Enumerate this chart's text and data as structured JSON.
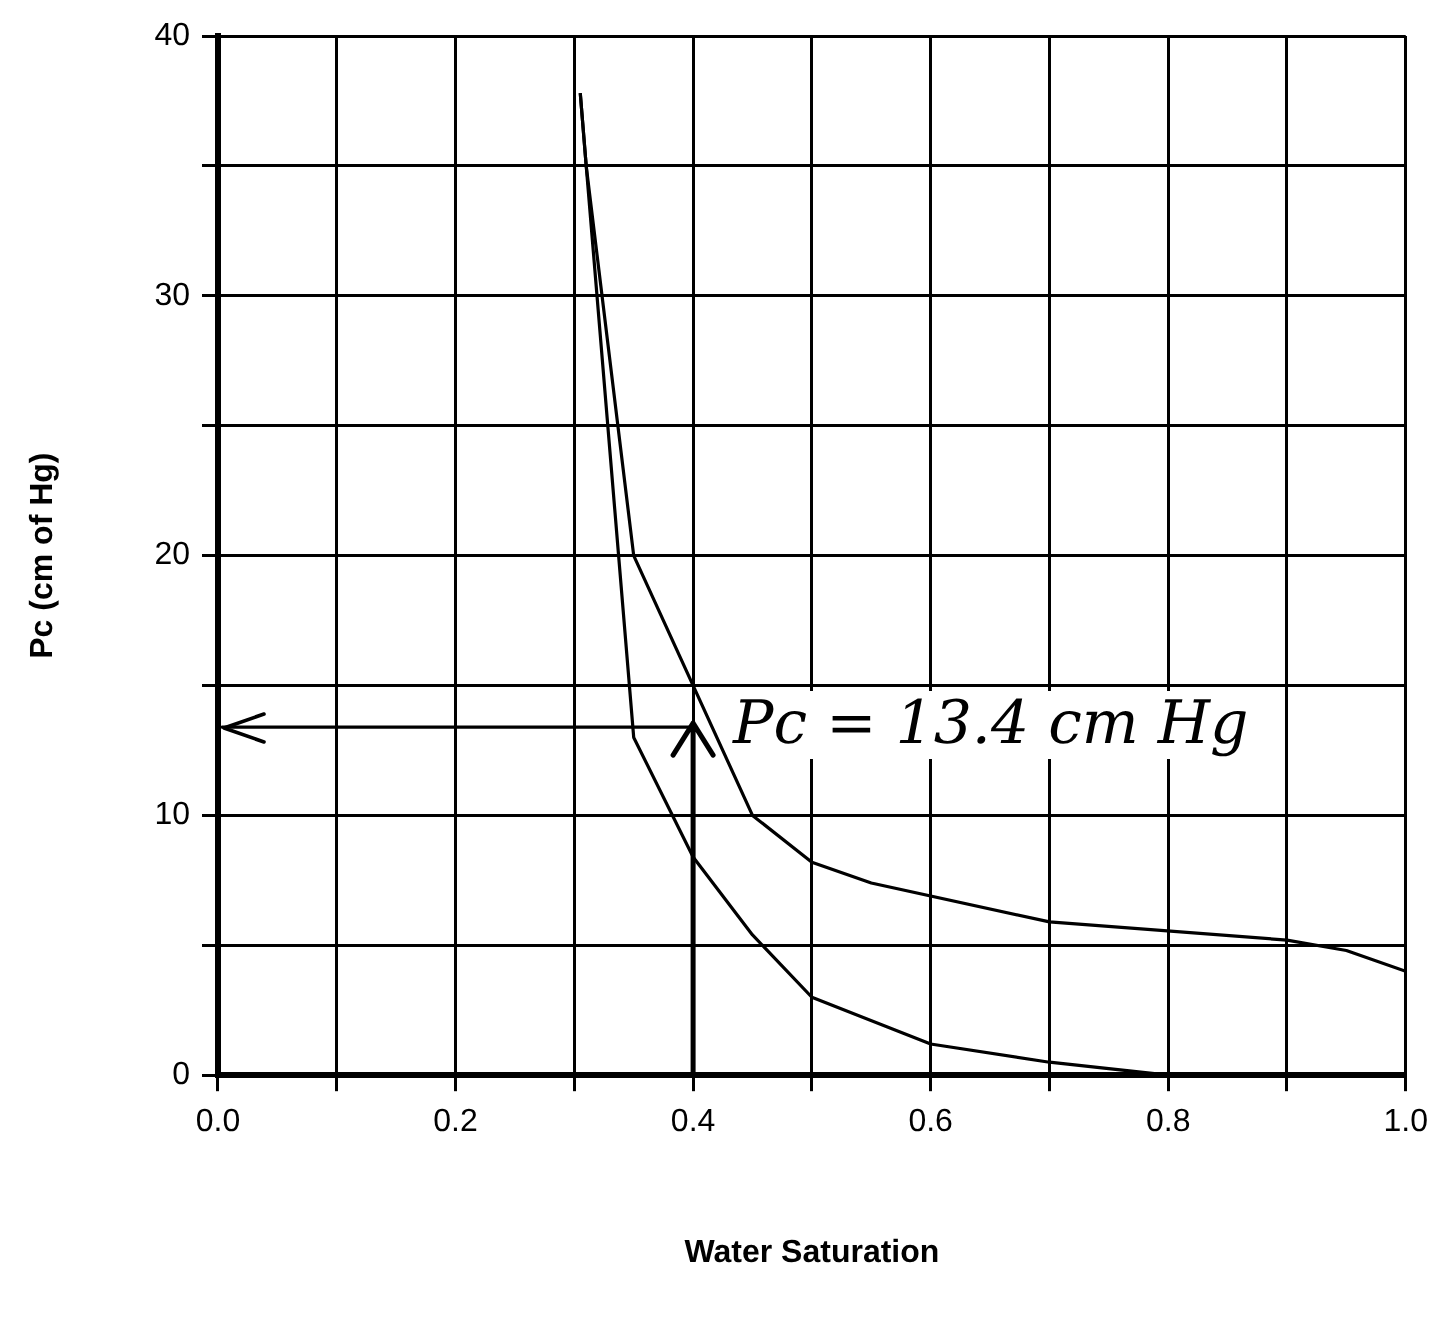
{
  "chart_data": {
    "type": "line",
    "xlabel": "Water Saturation",
    "ylabel": "Pc (cm of Hg)",
    "series": [
      {
        "color": "#000000",
        "x": [
          0.305,
          0.31,
          0.35,
          0.45,
          0.5,
          0.55,
          0.7,
          0.9,
          0.95,
          1.0
        ],
        "values": [
          37.8,
          35,
          20,
          10,
          8.2,
          7.4,
          5.9,
          5.2,
          4.8,
          4.0
        ]
      },
      {
        "color": "#000000",
        "x": [
          0.305,
          0.31,
          0.35,
          0.4,
          0.45,
          0.5,
          0.6,
          0.7,
          0.8
        ],
        "values": [
          37.8,
          35,
          13,
          8.4,
          5.4,
          3.0,
          1.2,
          0.5,
          0
        ]
      }
    ],
    "xlim": [
      0,
      1
    ],
    "xticks": [
      {
        "value": 0,
        "label": "0.0"
      },
      {
        "value": 0.1,
        "label": null
      },
      {
        "value": 0.2,
        "label": "0.2"
      },
      {
        "value": 0.3,
        "label": null
      },
      {
        "value": 0.4,
        "label": "0.4"
      },
      {
        "value": 0.5,
        "label": null
      },
      {
        "value": 0.6,
        "label": "0.6"
      },
      {
        "value": 0.7,
        "label": null
      },
      {
        "value": 0.8,
        "label": "0.8"
      },
      {
        "value": 0.9,
        "label": null
      },
      {
        "value": 1,
        "label": "1.0"
      }
    ],
    "ylim": [
      0,
      40
    ],
    "yticks": [
      0,
      {
        "value": 5,
        "label": null
      },
      10,
      {
        "value": 15,
        "label": null
      },
      20,
      {
        "value": 25,
        "label": null
      },
      30,
      {
        "value": 35,
        "label": null
      },
      40
    ],
    "grid": true,
    "legend": false,
    "marker": "none",
    "line_style": "solid",
    "ref_lines": [
      {
        "axis": "x",
        "value": 0.4,
        "color": "#000000"
      },
      {
        "axis": "y",
        "value": 13.4,
        "label": "Pc = 13.4 cm Hg",
        "color": "#000000"
      }
    ]
  }
}
